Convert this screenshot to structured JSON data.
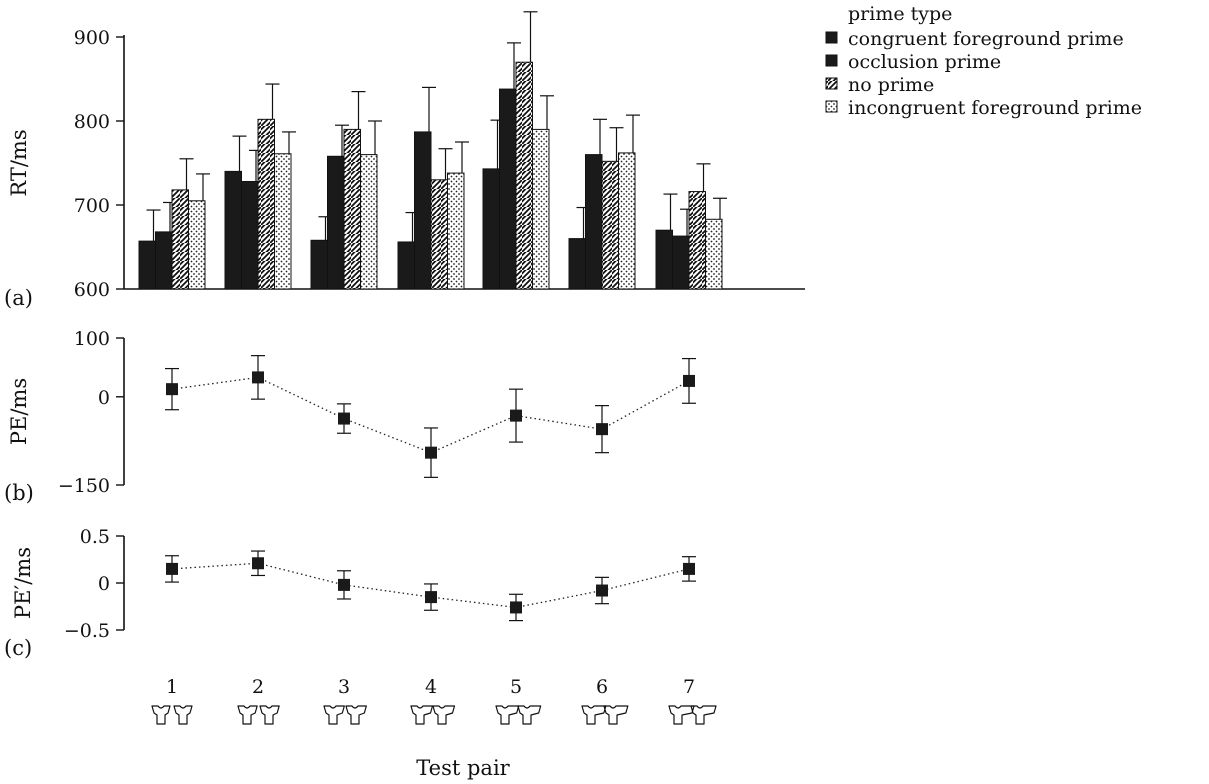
{
  "chart_data": [
    {
      "type": "bar",
      "panel_label": "(a)",
      "ylabel": "RT/ms",
      "ylim": [
        600,
        900
      ],
      "yticks": [
        "600",
        "700",
        "800",
        "900"
      ],
      "categories": [
        "1",
        "2",
        "3",
        "4",
        "5",
        "6",
        "7"
      ],
      "legend": {
        "title": "prime type",
        "placement": "top-right",
        "entries": [
          "congruent foreground prime",
          "occlusion prime",
          "no prime",
          "incongruent foreground prime"
        ]
      },
      "series": [
        {
          "name": "congruent foreground prime",
          "fill": "#1a1a1a",
          "pattern": "solid",
          "values": [
            657,
            740,
            658,
            656,
            743,
            660,
            670
          ],
          "errors": [
            37,
            42,
            28,
            35,
            58,
            37,
            43
          ]
        },
        {
          "name": "occlusion prime",
          "fill": "#1a1a1a",
          "pattern": "solid",
          "values": [
            668,
            728,
            758,
            787,
            838,
            760,
            663
          ],
          "errors": [
            35,
            37,
            37,
            53,
            55,
            42,
            32
          ]
        },
        {
          "name": "no prime",
          "fill": "#ffffff",
          "pattern": "diagonal",
          "values": [
            718,
            802,
            790,
            730,
            870,
            752,
            716
          ],
          "errors": [
            37,
            42,
            45,
            37,
            60,
            40,
            33
          ]
        },
        {
          "name": "incongruent foreground prime",
          "fill": "#ffffff",
          "pattern": "dotted",
          "values": [
            705,
            761,
            760,
            738,
            790,
            762,
            683
          ],
          "errors": [
            32,
            26,
            40,
            37,
            40,
            45,
            25
          ]
        }
      ]
    },
    {
      "type": "line",
      "panel_label": "(b)",
      "ylabel": "PE/ms",
      "ylim": [
        -150,
        100
      ],
      "yticks": [
        "−150",
        "0",
        "100"
      ],
      "x": [
        "1",
        "2",
        "3",
        "4",
        "5",
        "6",
        "7"
      ],
      "values": [
        13,
        33,
        -37,
        -95,
        -32,
        -55,
        27
      ],
      "errors": [
        35,
        37,
        25,
        42,
        45,
        40,
        38
      ]
    },
    {
      "type": "line",
      "panel_label": "(c)",
      "ylabel": "PE′/ms",
      "ylim": [
        -0.5,
        0.5
      ],
      "yticks": [
        "−0.5",
        "0",
        "0.5"
      ],
      "x": [
        "1",
        "2",
        "3",
        "4",
        "5",
        "6",
        "7"
      ],
      "xlabel": "Test pair",
      "values": [
        0.15,
        0.21,
        -0.02,
        -0.15,
        -0.26,
        -0.08,
        0.15
      ],
      "errors": [
        0.14,
        0.13,
        0.15,
        0.14,
        0.14,
        0.14,
        0.13
      ]
    }
  ]
}
